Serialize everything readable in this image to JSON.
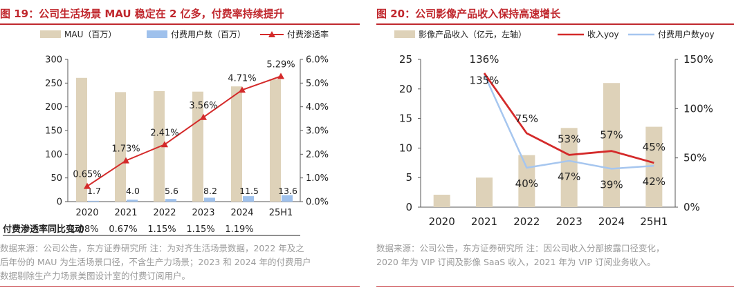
{
  "charts": [
    {
      "title": "图 19：公司生活场景 MAU 稳定在 2 亿多，付费率持续提升",
      "source_lines": [
        "数据来源：公司公告，东方证券研究所 注：为对齐生活场景数据，2022 年及之",
        "后年份的 MAU 为生活场景口径，不含生产力场景；2023 和 2024 年的付费用户",
        "数据剔除生产力场景美图设计室的付费订阅用户。"
      ]
    },
    {
      "title": "图 20：公司影像产品收入保持高速增长",
      "source_lines": [
        "数据来源：公司公告，东方证券研究所 注：因公司收入分部披露口径变化，",
        "2020 年为 VIP 订阅及影像 SaaS 收入，2021 年为 VIP 订阅业务收入。"
      ]
    }
  ],
  "chart_data": [
    {
      "type": "bar",
      "categories": [
        "2020",
        "2021",
        "2022",
        "2023",
        "2024",
        "25H1"
      ],
      "series": [
        {
          "name": "MAU（百万）",
          "kind": "bar",
          "axis": "left",
          "color": "#ded2b9",
          "values": [
            261,
            231,
            233,
            232,
            243,
            258
          ]
        },
        {
          "name": "付费用户数（百万）",
          "kind": "bar",
          "axis": "left",
          "color": "#9fc1ec",
          "values": [
            1.7,
            4.0,
            5.6,
            8.2,
            11.5,
            13.6
          ],
          "labels": [
            "1.7",
            "4.0",
            "5.6",
            "8.2",
            "11.5",
            "13.6"
          ]
        },
        {
          "name": "付费渗透率",
          "kind": "line",
          "axis": "right",
          "color": "#d42a2a",
          "marker": "triangle",
          "values": [
            0.65,
            1.73,
            2.41,
            3.56,
            4.71,
            5.29
          ],
          "labels": [
            "0.65%",
            "1.73%",
            "2.41%",
            "3.56%",
            "4.71%",
            "5.29%"
          ]
        }
      ],
      "y_left": {
        "min": 0,
        "max": 300,
        "ticks": [
          "0",
          "50",
          "100",
          "150",
          "200",
          "250",
          "300"
        ]
      },
      "y_right": {
        "min": 0,
        "max": 6,
        "ticks": [
          "0.0%",
          "1.0%",
          "2.0%",
          "3.0%",
          "4.0%",
          "5.0%",
          "6.0%"
        ]
      },
      "legend_position": "top",
      "table_row": {
        "label": "付费渗透率同比变动",
        "values": [
          "1.08%",
          "0.67%",
          "1.15%",
          "1.15%",
          "1.19%"
        ]
      }
    },
    {
      "type": "bar",
      "categories": [
        "2020",
        "2021",
        "2022",
        "2023",
        "2024",
        "25H1"
      ],
      "series": [
        {
          "name": "影像产品收入（亿元，左轴）",
          "kind": "bar",
          "axis": "left",
          "color": "#ded2b9",
          "values": [
            2.1,
            5.0,
            8.8,
            13.4,
            21.0,
            13.6
          ]
        },
        {
          "name": "收入yoy",
          "kind": "line",
          "axis": "right",
          "color": "#d42a2a",
          "values": [
            null,
            136,
            75,
            53,
            57,
            45
          ],
          "labels": [
            "",
            "136%",
            "75%",
            "53%",
            "57%",
            "45%"
          ]
        },
        {
          "name": "付费用户数yoy",
          "kind": "line",
          "axis": "right",
          "color": "#a6c6ef",
          "values": [
            null,
            135,
            40,
            47,
            39,
            42
          ],
          "labels": [
            "",
            "135%",
            "40%",
            "47%",
            "39%",
            "42%"
          ]
        }
      ],
      "y_left": {
        "min": 0,
        "max": 25,
        "ticks": [
          "0",
          "5",
          "10",
          "15",
          "20",
          "25"
        ]
      },
      "y_right": {
        "min": 0,
        "max": 150,
        "ticks": [
          "0%",
          "50%",
          "100%",
          "150%"
        ]
      },
      "legend_position": "top"
    }
  ]
}
